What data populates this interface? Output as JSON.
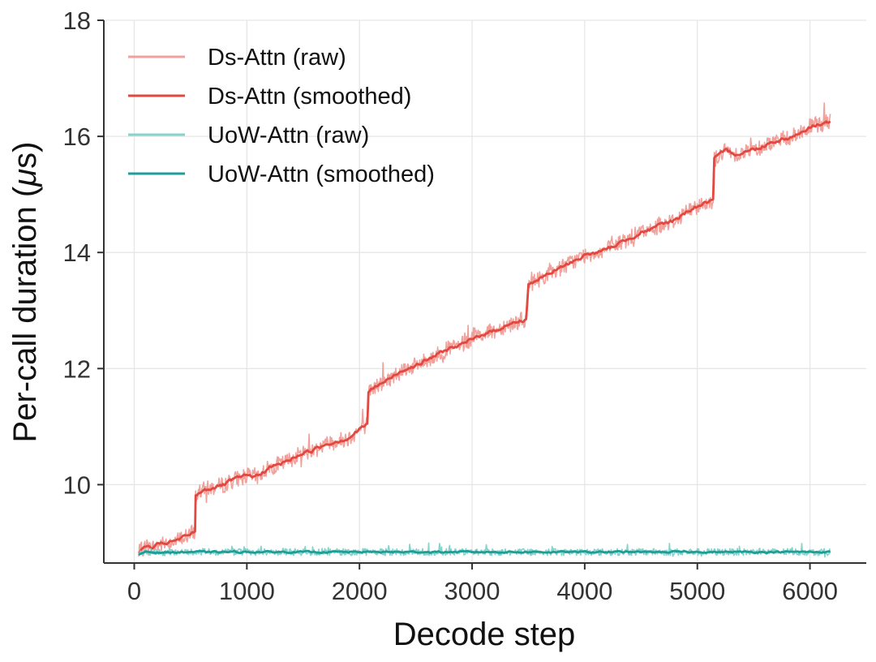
{
  "chart_data": {
    "type": "line",
    "xlabel": "Decode step",
    "ylabel": "Per-call duration (μs)",
    "ylabel_parts": [
      "Per-call duration (",
      "μ",
      "s)"
    ],
    "xlim": [
      -270,
      6500
    ],
    "ylim": [
      8.65,
      18
    ],
    "x_ticks": [
      0,
      1000,
      2000,
      3000,
      4000,
      5000,
      6000
    ],
    "y_ticks": [
      10,
      12,
      14,
      16,
      18
    ],
    "grid": true,
    "legend_position": "top-left",
    "series": [
      {
        "name": "Ds-Attn (raw)",
        "color": "#f1a19c",
        "kind": "raw",
        "x": [
          40,
          100,
          150,
          200,
          300,
          400,
          500,
          540,
          545,
          600,
          700,
          800,
          900,
          1000,
          1100,
          1200,
          1300,
          1400,
          1500,
          1600,
          1700,
          1800,
          1900,
          2000,
          2070,
          2080,
          2150,
          2250,
          2400,
          2500,
          2600,
          2700,
          2800,
          2900,
          3000,
          3100,
          3200,
          3300,
          3400,
          3480,
          3500,
          3600,
          3700,
          3800,
          3900,
          4000,
          4100,
          4200,
          4300,
          4400,
          4500,
          4600,
          4700,
          4800,
          4900,
          5000,
          5140,
          5150,
          5250,
          5350,
          5450,
          5550,
          5650,
          5750,
          5850,
          5950,
          6050,
          6180
        ],
        "values": [
          8.82,
          8.95,
          8.9,
          8.95,
          9.0,
          9.05,
          9.15,
          9.2,
          9.8,
          9.9,
          9.95,
          10.0,
          10.1,
          10.15,
          10.15,
          10.3,
          10.35,
          10.45,
          10.55,
          10.6,
          10.7,
          10.75,
          10.8,
          10.95,
          11.05,
          11.6,
          11.7,
          11.8,
          12.0,
          12.05,
          12.15,
          12.25,
          12.35,
          12.4,
          12.5,
          12.6,
          12.65,
          12.75,
          12.8,
          12.85,
          13.45,
          13.55,
          13.65,
          13.75,
          13.85,
          13.95,
          14.0,
          14.05,
          14.15,
          14.25,
          14.35,
          14.4,
          14.5,
          14.55,
          14.7,
          14.8,
          14.9,
          15.6,
          15.75,
          15.7,
          15.75,
          15.8,
          15.9,
          15.95,
          16.0,
          16.1,
          16.2,
          16.25
        ]
      },
      {
        "name": "Ds-Attn (smoothed)",
        "color": "#e2483f",
        "kind": "smoothed",
        "x": [
          40,
          100,
          150,
          200,
          300,
          400,
          500,
          540,
          545,
          600,
          700,
          800,
          900,
          1000,
          1100,
          1200,
          1300,
          1400,
          1500,
          1600,
          1700,
          1800,
          1900,
          2000,
          2070,
          2080,
          2150,
          2250,
          2400,
          2500,
          2600,
          2700,
          2800,
          2900,
          3000,
          3100,
          3200,
          3300,
          3400,
          3480,
          3500,
          3600,
          3700,
          3800,
          3900,
          4000,
          4100,
          4200,
          4300,
          4400,
          4500,
          4600,
          4700,
          4800,
          4900,
          5000,
          5140,
          5150,
          5250,
          5350,
          5450,
          5550,
          5650,
          5750,
          5850,
          5950,
          6050,
          6180
        ],
        "values": [
          8.82,
          8.95,
          8.9,
          8.95,
          9.0,
          9.05,
          9.15,
          9.2,
          9.8,
          9.9,
          9.95,
          10.0,
          10.1,
          10.15,
          10.15,
          10.3,
          10.35,
          10.45,
          10.55,
          10.6,
          10.7,
          10.75,
          10.8,
          10.95,
          11.05,
          11.6,
          11.7,
          11.8,
          12.0,
          12.05,
          12.15,
          12.25,
          12.35,
          12.4,
          12.5,
          12.6,
          12.65,
          12.75,
          12.8,
          12.85,
          13.45,
          13.55,
          13.65,
          13.75,
          13.85,
          13.95,
          14.0,
          14.05,
          14.15,
          14.25,
          14.35,
          14.4,
          14.5,
          14.55,
          14.7,
          14.8,
          14.9,
          15.6,
          15.75,
          15.7,
          15.75,
          15.8,
          15.9,
          15.95,
          16.0,
          16.1,
          16.2,
          16.25
        ]
      },
      {
        "name": "UoW-Attn (raw)",
        "color": "#86d3cc",
        "kind": "raw",
        "x": [
          40,
          100,
          200,
          500,
          1000,
          1500,
          2000,
          2500,
          3000,
          3500,
          4000,
          4500,
          5000,
          5500,
          6000,
          6180
        ],
        "values": [
          8.78,
          8.85,
          8.83,
          8.84,
          8.84,
          8.84,
          8.84,
          8.84,
          8.84,
          8.84,
          8.84,
          8.84,
          8.84,
          8.84,
          8.84,
          8.84
        ]
      },
      {
        "name": "UoW-Attn (smoothed)",
        "color": "#1d9e97",
        "kind": "smoothed",
        "x": [
          40,
          100,
          200,
          500,
          1000,
          1500,
          2000,
          2500,
          3000,
          3500,
          4000,
          4500,
          5000,
          5500,
          6000,
          6180
        ],
        "values": [
          8.78,
          8.85,
          8.83,
          8.84,
          8.84,
          8.84,
          8.84,
          8.84,
          8.84,
          8.84,
          8.84,
          8.84,
          8.84,
          8.84,
          8.84,
          8.84
        ]
      }
    ]
  }
}
